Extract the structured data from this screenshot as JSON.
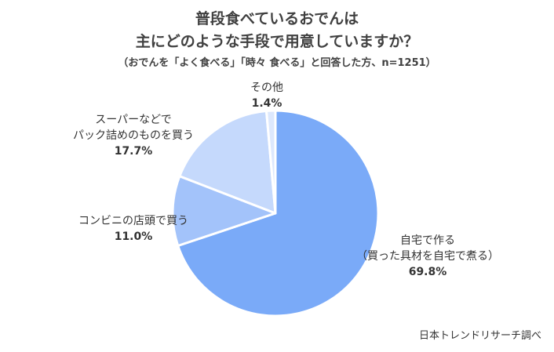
{
  "chart_data": {
    "type": "pie",
    "title_lines": [
      "普段食べているおでんは",
      "主にどのような手段で用意していますか？"
    ],
    "subtitle": "（おでんを「よく食べる」「時々 食べる」と回答した方、n=1251）",
    "slices": [
      {
        "label_lines": [
          "自宅で作る",
          "（買った具材を自宅で煮る）"
        ],
        "value": 69.8,
        "value_label": "69.8%"
      },
      {
        "label_lines": [
          "コンビニの店頭で買う"
        ],
        "value": 11.0,
        "value_label": "11.0%"
      },
      {
        "label_lines": [
          "スーパーなどで",
          "パック詰めのものを買う"
        ],
        "value": 17.7,
        "value_label": "17.7%"
      },
      {
        "label_lines": [
          "その他"
        ],
        "value": 1.4,
        "value_label": "1.4%"
      }
    ],
    "colors": [
      "#7aaaf8",
      "#a3c3fa",
      "#c5d9fc",
      "#dde8fd"
    ],
    "start": "12 o'clock",
    "direction": "clockwise"
  },
  "source": "日本トレンドリサーチ調べ"
}
